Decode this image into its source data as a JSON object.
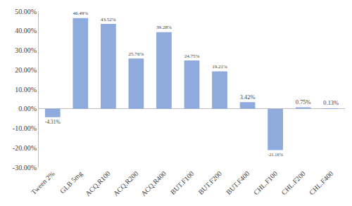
{
  "chart_data": {
    "type": "bar",
    "categories": [
      "Tween 2%",
      "GLB 5mg",
      "ACQ.R100",
      "ACQ.R200",
      "ACQ.R400",
      "BUT.F100",
      "BUT.F200",
      "BUT.F400",
      "CHL.F100",
      "CHL.F200",
      "CHL.F400"
    ],
    "values": [
      -4.31,
      46.49,
      43.52,
      25.76,
      39.28,
      24.75,
      19.21,
      3.42,
      -21.16,
      0.75,
      0.13
    ],
    "value_labels": [
      "-4.31%",
      "46.49%",
      "43.52%",
      "25.76%",
      "39.28%",
      "24.75%",
      "19.21%",
      "3.42%",
      "-21.16%",
      "0.75%",
      "0.13%"
    ],
    "color": "#8faadc",
    "ylim": [
      -30,
      50
    ],
    "yticks": [
      {
        "value": -30,
        "label": "-30.00%"
      },
      {
        "value": -20,
        "label": "-20.00%"
      },
      {
        "value": -10,
        "label": "-10.00%"
      },
      {
        "value": 0,
        "label": "0.00%"
      },
      {
        "value": 10,
        "label": "10.00%"
      },
      {
        "value": 20,
        "label": "20.00%"
      },
      {
        "value": 30,
        "label": "30.00%"
      },
      {
        "value": 40,
        "label": "40.00%"
      },
      {
        "value": 50,
        "label": "50.00%"
      }
    ],
    "grid": false,
    "data_labels": true
  }
}
